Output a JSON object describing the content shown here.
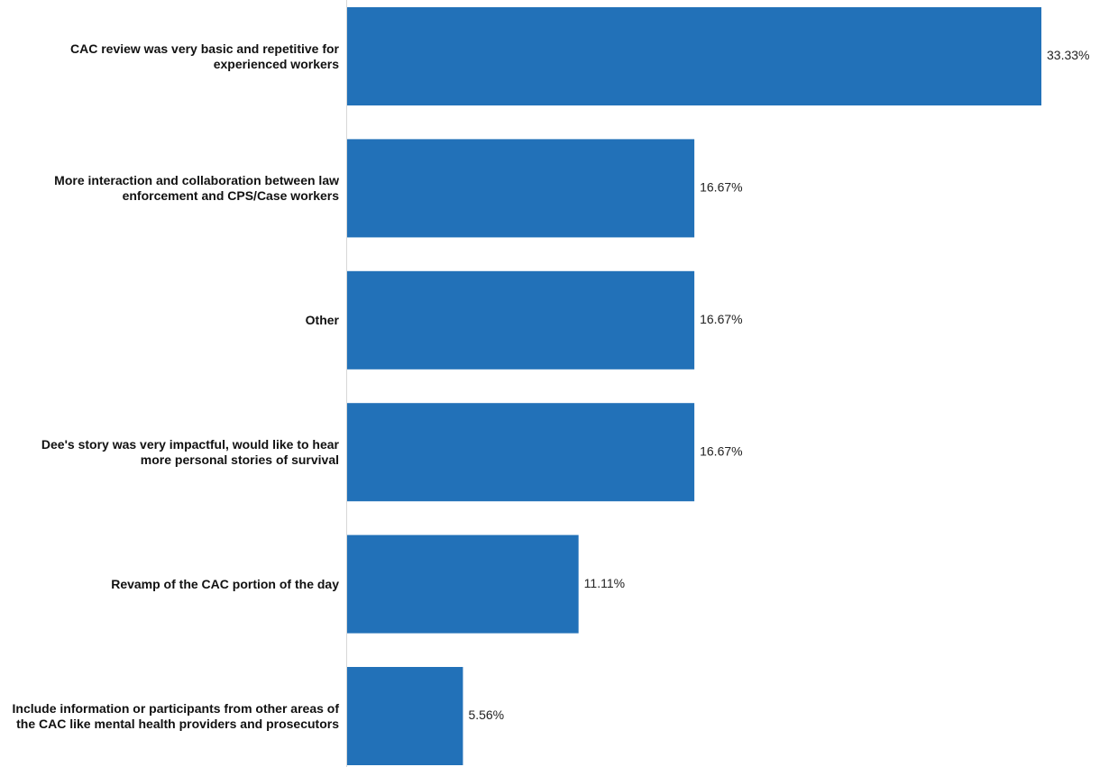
{
  "chart_data": {
    "type": "bar",
    "orientation": "horizontal",
    "color": "#2271b8",
    "categories": [
      "CAC review was very basic and repetitive for experienced workers",
      "More interaction and collaboration between law enforcement and CPS/Case workers",
      "Other",
      "Dee's story was very impactful, would like to hear more personal stories of survival",
      "Revamp of the CAC portion of the day",
      "Include information or participants from other areas of the CAC like mental health providers and prosecutors"
    ],
    "values": [
      33.33,
      16.67,
      16.67,
      16.67,
      11.11,
      5.56
    ],
    "value_labels": [
      "33.33%",
      "16.67%",
      "16.67%",
      "16.67%",
      "11.11%",
      "5.56%"
    ]
  }
}
